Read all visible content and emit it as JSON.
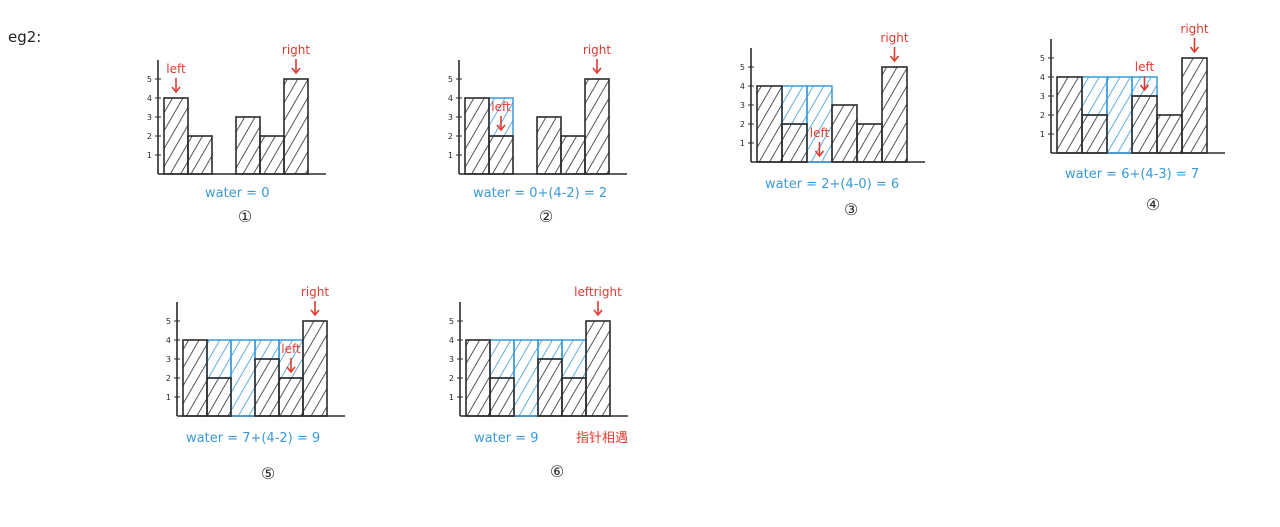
{
  "page_label": "eg2:",
  "colors": {
    "ink": "#2b2b2b",
    "pointer": "#e03a2f",
    "water": "#3a9ad9"
  },
  "axis_ticks": [
    "1",
    "2",
    "3",
    "4",
    "5"
  ],
  "diagrams": [
    {
      "step": "①",
      "heights": [
        4,
        2,
        0,
        3,
        2,
        5
      ],
      "water": [],
      "pointers": [
        {
          "text": "left",
          "bar": 0
        },
        {
          "text": "right",
          "bar": 5
        }
      ],
      "formula": "water = 0",
      "note": ""
    },
    {
      "step": "②",
      "heights": [
        4,
        2,
        0,
        3,
        2,
        5
      ],
      "water": [
        {
          "bar": 1,
          "level": 4
        }
      ],
      "pointers": [
        {
          "text": "left",
          "bar": 1
        },
        {
          "text": "right",
          "bar": 5
        }
      ],
      "formula": "water = 0+(4-2) = 2",
      "note": ""
    },
    {
      "step": "③",
      "heights": [
        4,
        2,
        0,
        3,
        2,
        5
      ],
      "water": [
        {
          "bar": 1,
          "level": 4
        },
        {
          "bar": 2,
          "level": 4
        }
      ],
      "pointers": [
        {
          "text": "left",
          "bar": 2
        },
        {
          "text": "right",
          "bar": 5
        }
      ],
      "formula": "water = 2+(4-0) = 6",
      "note": ""
    },
    {
      "step": "④",
      "heights": [
        4,
        2,
        0,
        3,
        2,
        5
      ],
      "water": [
        {
          "bar": 1,
          "level": 4
        },
        {
          "bar": 2,
          "level": 4
        },
        {
          "bar": 3,
          "level": 4
        }
      ],
      "pointers": [
        {
          "text": "left",
          "bar": 3
        },
        {
          "text": "right",
          "bar": 5
        }
      ],
      "formula": "water = 6+(4-3) = 7",
      "note": ""
    },
    {
      "step": "⑤",
      "heights": [
        4,
        2,
        0,
        3,
        2,
        5
      ],
      "water": [
        {
          "bar": 1,
          "level": 4
        },
        {
          "bar": 2,
          "level": 4
        },
        {
          "bar": 3,
          "level": 4
        },
        {
          "bar": 4,
          "level": 4
        }
      ],
      "pointers": [
        {
          "text": "left",
          "bar": 4
        },
        {
          "text": "right",
          "bar": 5
        }
      ],
      "formula": "water = 7+(4-2) = 9",
      "note": ""
    },
    {
      "step": "⑥",
      "heights": [
        4,
        2,
        0,
        3,
        2,
        5
      ],
      "water": [
        {
          "bar": 1,
          "level": 4
        },
        {
          "bar": 2,
          "level": 4
        },
        {
          "bar": 3,
          "level": 4
        },
        {
          "bar": 4,
          "level": 4
        }
      ],
      "pointers": [
        {
          "text": "leftright",
          "bar": 5
        }
      ],
      "formula": "water = 9",
      "note": "指针相遇"
    }
  ]
}
